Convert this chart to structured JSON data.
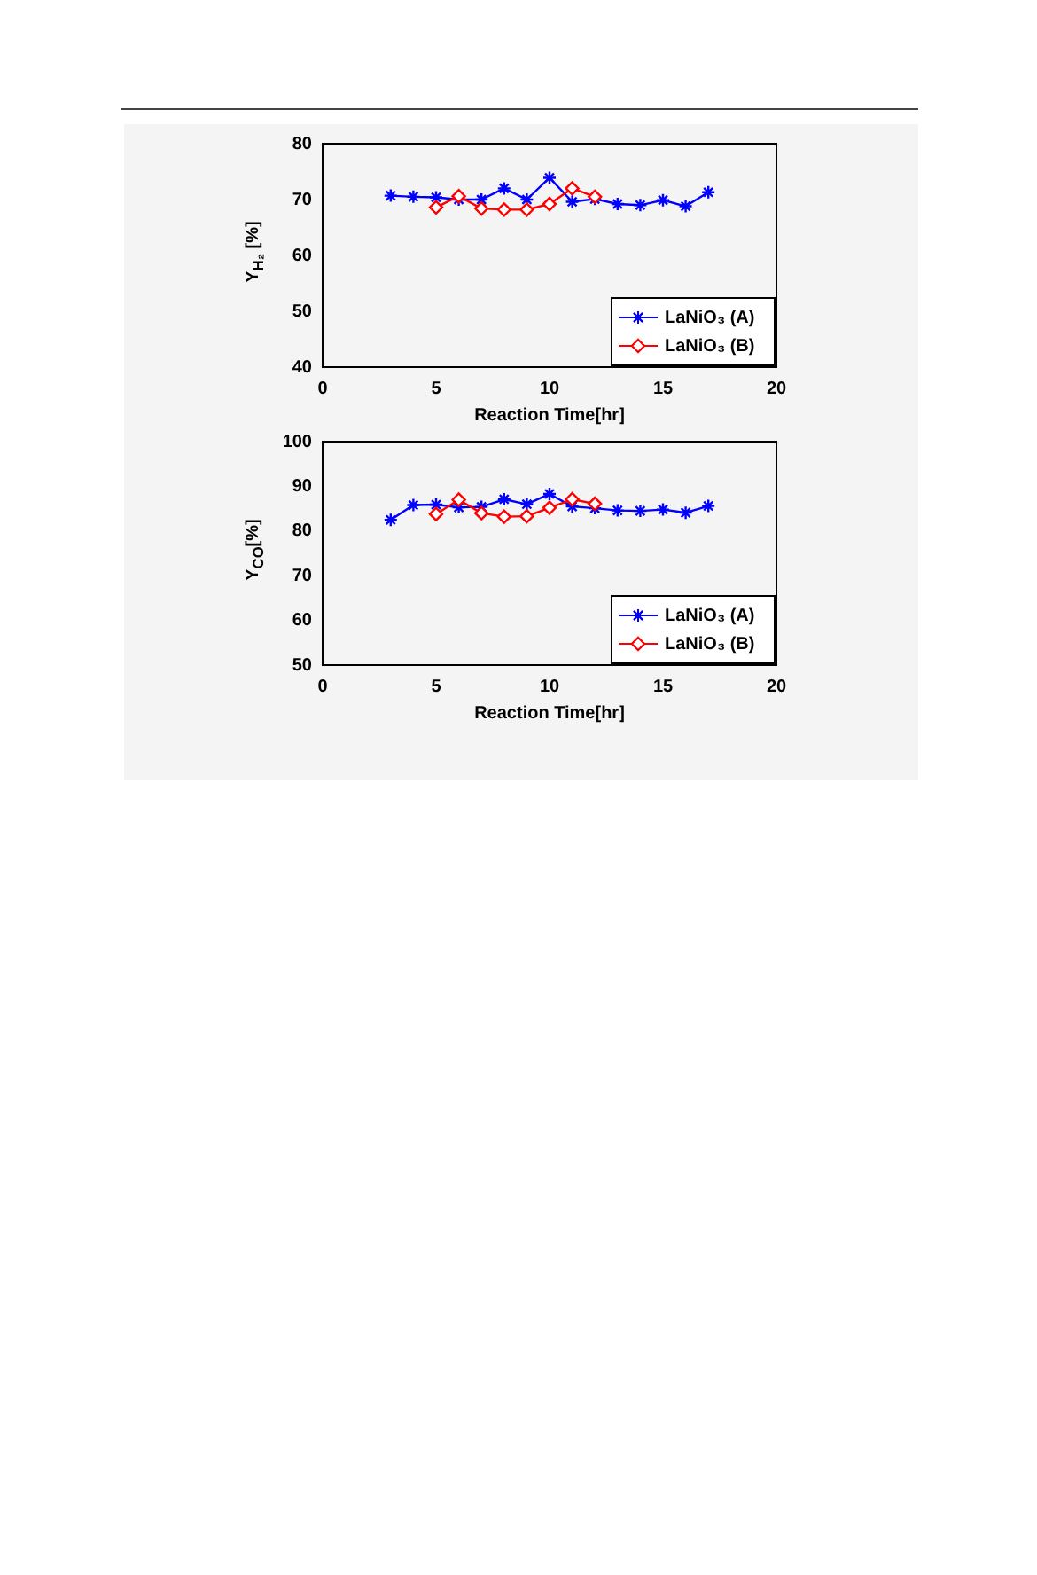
{
  "chart_data": [
    {
      "type": "line",
      "xlabel": "Reaction Time[hr]",
      "ylabel": "Y$_{H₂}$ [%]",
      "xlim": [
        0,
        20
      ],
      "xticks": [
        0,
        5,
        10,
        15,
        20
      ],
      "ylim": [
        40,
        80
      ],
      "yticks": [
        40,
        50,
        60,
        70,
        80
      ],
      "grid": false,
      "legend": "bottom right",
      "series": [
        {
          "name": "LaNiO₃ (A)",
          "color": "#0000ff",
          "marker": "cross",
          "x": [
            3,
            4,
            5,
            6,
            7,
            8,
            9,
            10,
            11,
            12,
            13,
            14,
            15,
            16,
            17
          ],
          "values": [
            70.7,
            70.5,
            70.4,
            70.0,
            70.0,
            72.0,
            70.0,
            73.9,
            69.6,
            70.1,
            69.2,
            69.0,
            69.9,
            68.8,
            71.3
          ]
        },
        {
          "name": "LaNiO₃ (B)",
          "color": "#ff0000",
          "marker": "diamond",
          "x": [
            5,
            6,
            7,
            8,
            9,
            10,
            11,
            12
          ],
          "values": [
            68.6,
            70.6,
            68.4,
            68.2,
            68.2,
            69.2,
            72.0,
            70.5
          ]
        }
      ]
    },
    {
      "type": "line",
      "xlabel": "Reaction Time[hr]",
      "ylabel": "Y$_{CO}$[%]",
      "xlim": [
        0,
        20
      ],
      "xticks": [
        0,
        5,
        10,
        15,
        20
      ],
      "ylim": [
        50,
        100
      ],
      "yticks": [
        50,
        60,
        70,
        80,
        90,
        100
      ],
      "grid": false,
      "legend": "bottom right",
      "series": [
        {
          "name": "LaNiO₃ (A)",
          "color": "#0000ff",
          "marker": "cross",
          "x": [
            3,
            4,
            5,
            6,
            7,
            8,
            9,
            10,
            11,
            12,
            13,
            14,
            15,
            16,
            17
          ],
          "values": [
            82.5,
            85.8,
            85.9,
            85.3,
            85.4,
            87.1,
            86.0,
            88.3,
            85.5,
            85.1,
            84.6,
            84.5,
            84.8,
            84.1,
            85.6
          ]
        },
        {
          "name": "LaNiO₃ (B)",
          "color": "#ff0000",
          "marker": "diamond",
          "x": [
            5,
            6,
            7,
            8,
            9,
            10,
            11,
            12
          ],
          "values": [
            83.8,
            87.0,
            84.0,
            83.2,
            83.3,
            85.2,
            87.1,
            86.1
          ]
        }
      ]
    }
  ]
}
